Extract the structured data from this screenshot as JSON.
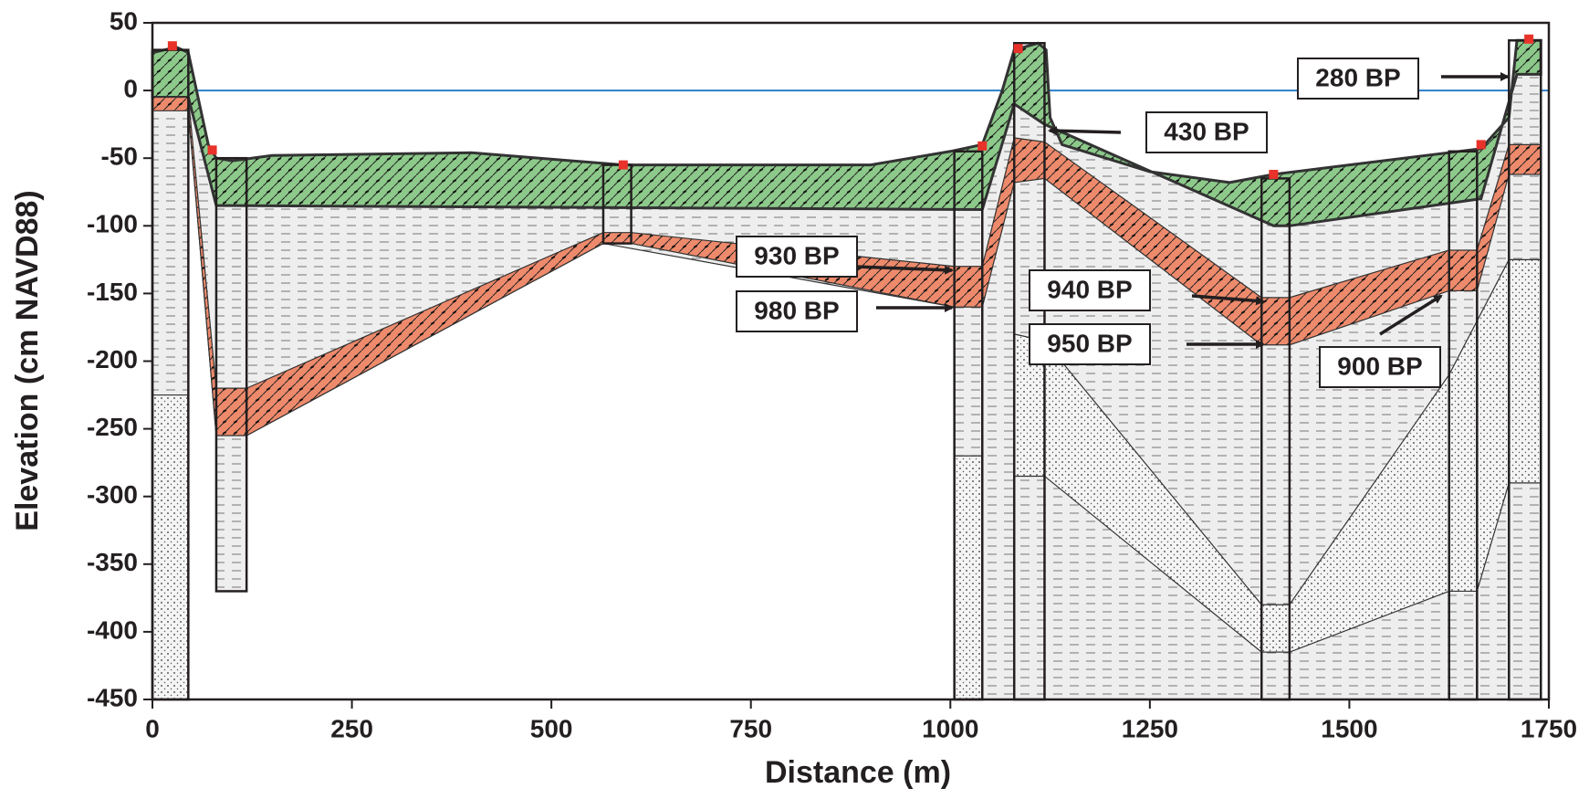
{
  "chart_data": {
    "type": "cross-section",
    "x_label": "Distance (m)",
    "y_label": "Elevation (cm NAVD88)",
    "xlim": [
      0,
      1750
    ],
    "ylim": [
      -450,
      50
    ],
    "xticks": [
      0,
      250,
      500,
      750,
      1000,
      1250,
      1500,
      1750
    ],
    "yticks": [
      50,
      0,
      -50,
      -100,
      -150,
      -200,
      -250,
      -300,
      -350,
      -400,
      -450
    ],
    "sea_level": {
      "value": 0,
      "color": "#2a7fc9"
    },
    "layers": [
      {
        "pattern": "dashes",
        "color": "#eeeeee",
        "x": [
          0,
          30,
          45,
          70,
          80,
          100,
          150,
          400,
          590,
          900,
          1000,
          1040,
          1065,
          1080,
          1110,
          1120,
          1125,
          1140,
          1250,
          1350,
          1405,
          1500,
          1665,
          1700,
          1710,
          1740,
          1740,
          1005,
          1005,
          565,
          118,
          118,
          80,
          80,
          45,
          45,
          0
        ],
        "y": [
          28,
          32,
          28,
          -40,
          -50,
          -52,
          -48,
          -46,
          -55,
          -55,
          -45,
          -40,
          0,
          30,
          35,
          30,
          -20,
          -40,
          -60,
          -68,
          -62,
          -55,
          -43,
          -20,
          37,
          37,
          -450,
          -450,
          -160,
          -113,
          -255,
          -370,
          -370,
          -255,
          -15,
          -450,
          -450
        ]
      },
      {
        "pattern": "dots",
        "color": "#f4f4f4",
        "x": [
          1080,
          1118,
          1390,
          1425,
          1625,
          1700,
          1740,
          1740,
          1700,
          1660,
          1625,
          1425,
          1390,
          1118,
          1080
        ],
        "y": [
          -180,
          -185,
          -380,
          -380,
          -210,
          -125,
          -125,
          -290,
          -290,
          -370,
          -370,
          -415,
          -415,
          -285,
          -285
        ]
      },
      {
        "pattern": "dots",
        "color": "#f4f4f4",
        "x": [
          0,
          45,
          45,
          0
        ],
        "y": [
          -225,
          -225,
          -450,
          -450
        ]
      },
      {
        "pattern": "dots",
        "color": "#f4f4f4",
        "x": [
          1005,
          1040,
          1040,
          1005
        ],
        "y": [
          -270,
          -270,
          -450,
          -450
        ]
      },
      {
        "pattern": "diagonal",
        "color": "#8cc98a",
        "x": [
          0,
          30,
          45,
          70,
          80,
          100,
          150,
          400,
          590,
          900,
          1000,
          1040,
          1065,
          1080,
          1110,
          1120,
          1125,
          1140,
          1250,
          1350,
          1405,
          1500,
          1665,
          1700,
          1710,
          1740,
          1740,
          1710,
          1665,
          1425,
          1405,
          1118,
          1080,
          1040,
          80,
          45,
          0
        ],
        "y": [
          28,
          32,
          28,
          -40,
          -50,
          -52,
          -48,
          -46,
          -55,
          -55,
          -45,
          -40,
          0,
          30,
          35,
          30,
          -20,
          -40,
          -60,
          -68,
          -62,
          -55,
          -43,
          -20,
          37,
          37,
          12,
          12,
          -80,
          -100,
          -100,
          -25,
          -10,
          -88,
          -85,
          -5,
          -5
        ]
      },
      {
        "pattern": "diagonal",
        "color": "#ee8a6c",
        "x": [
          0,
          45,
          80,
          118,
          565,
          600,
          1005,
          1040,
          1080,
          1118,
          1390,
          1425,
          1625,
          1660,
          1700,
          1740,
          1740,
          1700,
          1660,
          1625,
          1425,
          1390,
          1118,
          1080,
          1040,
          1005,
          600,
          565,
          118,
          80,
          45,
          0
        ],
        "y": [
          -5,
          -5,
          -220,
          -220,
          -105,
          -105,
          -130,
          -130,
          -35,
          -38,
          -153,
          -153,
          -118,
          -118,
          -40,
          -40,
          -62,
          -62,
          -148,
          -148,
          -188,
          -188,
          -65,
          -68,
          -160,
          -160,
          -113,
          -113,
          -255,
          -255,
          -15,
          -15
        ]
      }
    ],
    "cores": [
      {
        "x": [
          0,
          45
        ],
        "top": 30,
        "bottom": -450
      },
      {
        "x": [
          80,
          118
        ],
        "top": -50,
        "bottom": -370
      },
      {
        "x": [
          565,
          600
        ],
        "top": -55,
        "bottom": -113
      },
      {
        "x": [
          1005,
          1040
        ],
        "top": -45,
        "bottom": -450
      },
      {
        "x": [
          1080,
          1118
        ],
        "top": 35,
        "bottom": -450
      },
      {
        "x": [
          1390,
          1425
        ],
        "top": -65,
        "bottom": -450
      },
      {
        "x": [
          1625,
          1660
        ],
        "top": -45,
        "bottom": -450
      },
      {
        "x": [
          1700,
          1740
        ],
        "top": 37,
        "bottom": -450
      }
    ],
    "sample_sites": {
      "color": "#e8322a",
      "x": [
        25,
        75,
        590,
        1040,
        1085,
        1405,
        1665,
        1725
      ],
      "y": [
        33,
        -44,
        -55,
        -41,
        31,
        -62,
        -40,
        38
      ]
    },
    "annotations": [
      "280 BP",
      "430 BP",
      "930 BP",
      "980 BP",
      "940 BP",
      "950 BP",
      "900 BP"
    ]
  }
}
